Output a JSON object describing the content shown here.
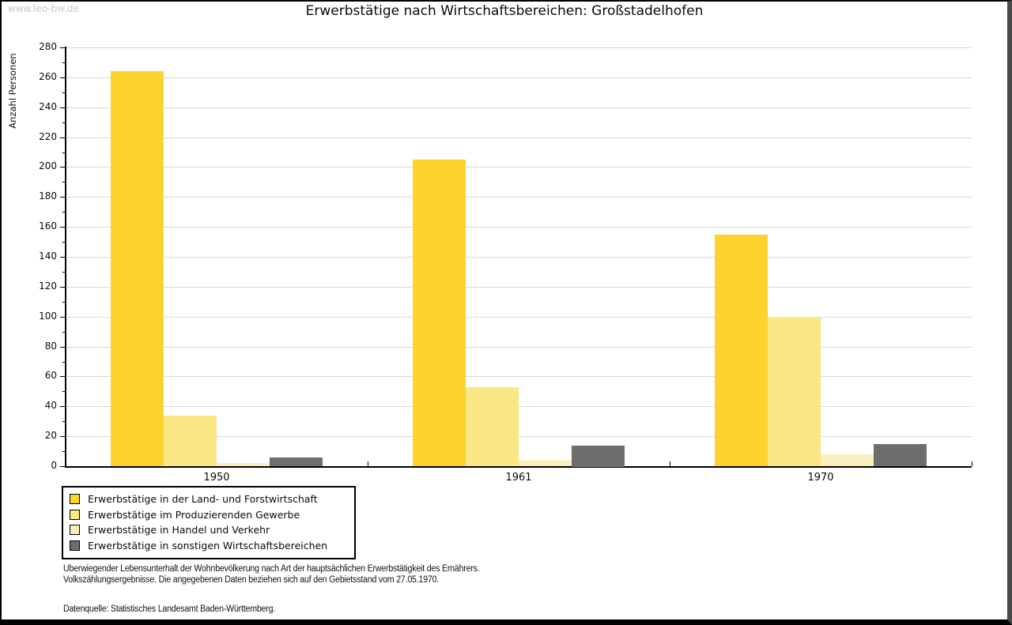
{
  "watermark": "www.leo-bw.de",
  "title": "Erwerbstätige nach Wirtschaftsbereichen: Großstadelhofen",
  "chart_data": {
    "type": "bar",
    "title": "Erwerbstätige nach Wirtschaftsbereichen: Großstadelhofen",
    "xlabel": "",
    "ylabel": "Anzahl Personen",
    "categories": [
      "1950",
      "1961",
      "1970"
    ],
    "series": [
      {
        "name": "Erwerbstätige in der Land- und Forstwirtschaft",
        "color": "#FCD42D",
        "values": [
          264,
          205,
          155
        ]
      },
      {
        "name": "Erwerbstätige im Produzierenden Gewerbe",
        "color": "#FBE783",
        "values": [
          34,
          53,
          100
        ]
      },
      {
        "name": "Erwerbstätige in Handel und Verkehr",
        "color": "#FAF0BE",
        "values": [
          2,
          4,
          8
        ]
      },
      {
        "name": "Erwerbstätige in sonstigen Wirtschaftsbereichen",
        "color": "#6E6E6E",
        "values": [
          6,
          14,
          15
        ]
      }
    ],
    "ylim": [
      0,
      280
    ],
    "ytick_major": 20,
    "ytick_minor": 10,
    "grid": "horizontal",
    "gridline_color": "#d8d8d8",
    "legend_position": "bottom-left"
  },
  "footnotes": {
    "line1": "Überwiegender Lebensunterhalt der Wohnbevölkerung nach Art der hauptsächlichen Erwerbstätigkeit des Ernährers.",
    "line2": "Volkszählungsergebnisse. Die angegebenen Daten beziehen sich auf den Gebietsstand vom 27.05.1970.",
    "source": "Datenquelle: Statistisches Landesamt Baden-Württemberg."
  }
}
